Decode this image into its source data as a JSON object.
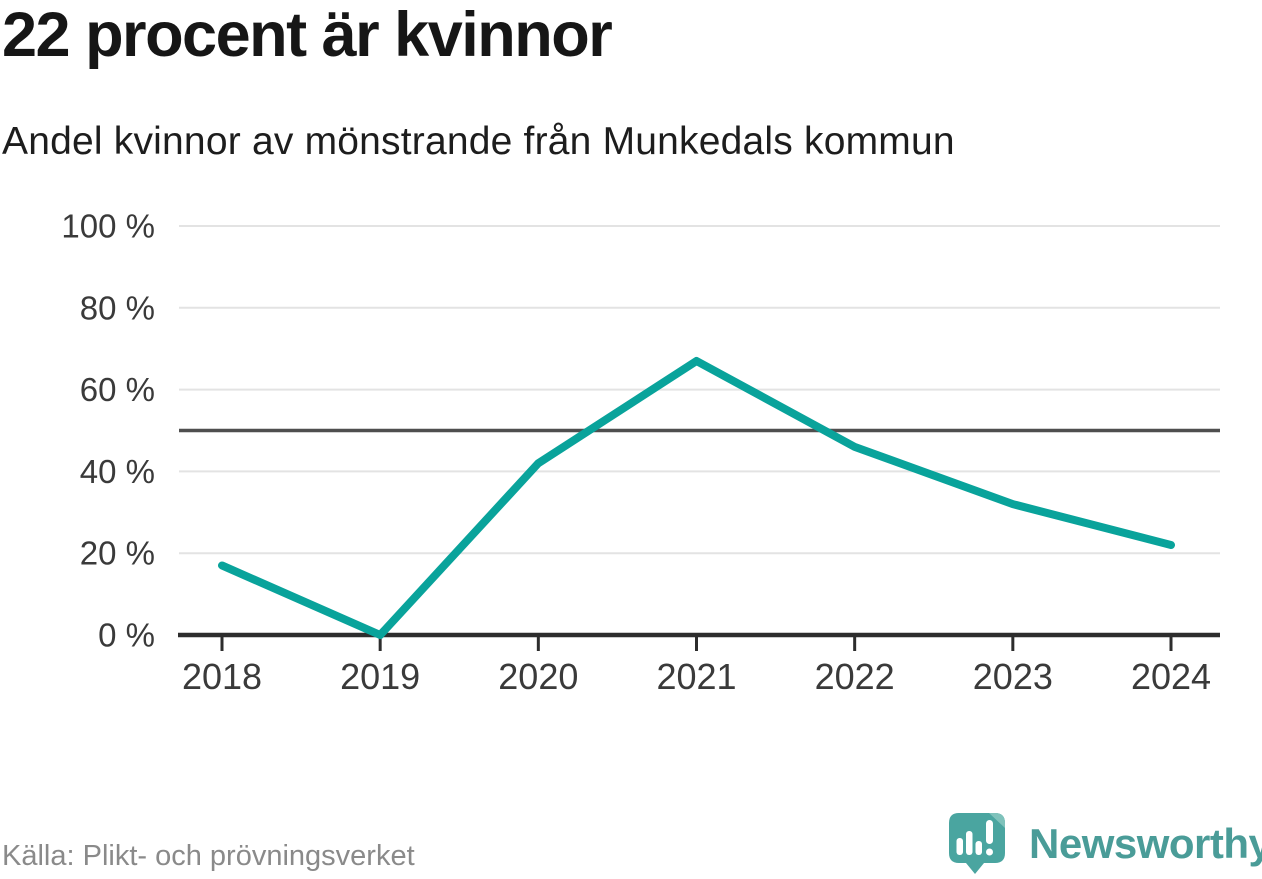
{
  "header": {
    "title": "22 procent är kvinnor",
    "subtitle": "Andel kvinnor av mönstrande från Munkedals kommun"
  },
  "chart_data": {
    "type": "line",
    "title": "22 procent är kvinnor",
    "subtitle": "Andel kvinnor av mönstrande från Munkedals kommun",
    "x": [
      "2018",
      "2019",
      "2020",
      "2021",
      "2022",
      "2023",
      "2024"
    ],
    "series": [
      {
        "name": "Andel kvinnor av mönstrande",
        "values": [
          17,
          0,
          42,
          67,
          46,
          32,
          22
        ]
      }
    ],
    "unit": "%",
    "xlabel": "",
    "ylabel": "",
    "ylim": [
      0,
      100
    ],
    "yticks": [
      0,
      20,
      40,
      60,
      80,
      100
    ],
    "ytick_suffix": " %",
    "reference_line": 50,
    "grid": true,
    "legend": "none",
    "line_color": "#09a39b"
  },
  "footer": {
    "source": "Källa: Plikt- och prövningsverket",
    "brand": "Newsworthy"
  },
  "colors": {
    "accent_teal": "#09a39b",
    "grid": "#e3e3e3",
    "reference": "#4f4f4f",
    "axis": "#2d2d2d",
    "axis_label": "#3a3a3a",
    "title_text": "#161616",
    "subtitle_text": "#1d1d1d",
    "source_text": "#8a8a8a",
    "brand_text": "#4a9c98",
    "logo_teal": "#4aa5a0",
    "logo_fold": "#7fc2bb",
    "logo_marks": "#ffffff"
  }
}
